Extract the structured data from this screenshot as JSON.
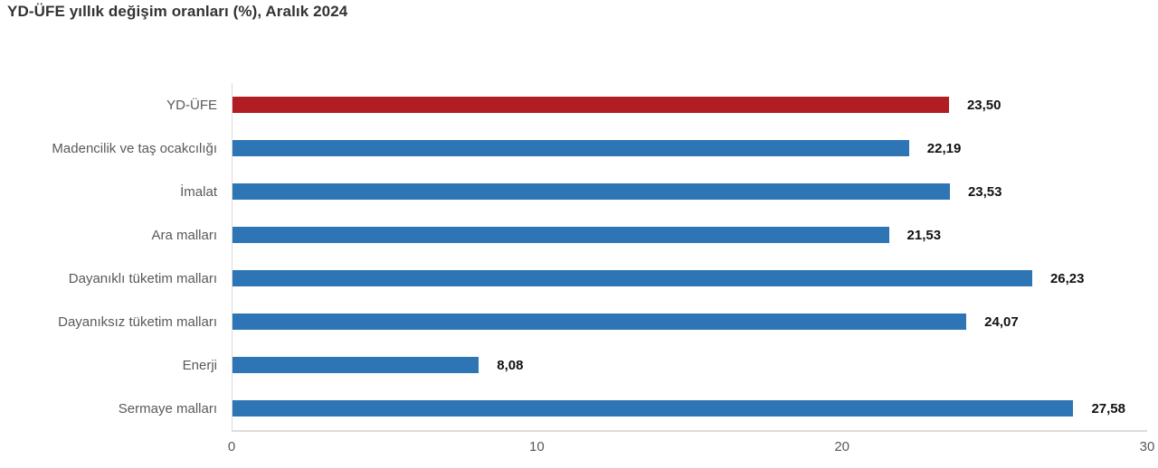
{
  "title": "YD-ÜFE yıllık değişim oranları (%), Aralık 2024",
  "chart_data": {
    "type": "bar",
    "orientation": "horizontal",
    "title": "YD-ÜFE yıllık değişim oranları (%), Aralık 2024",
    "categories": [
      "YD-ÜFE",
      "Madencilik ve taş ocakcılığı",
      "İmalat",
      "Ara malları",
      "Dayanıklı tüketim malları",
      "Dayanıksız tüketim malları",
      "Enerji",
      "Sermaye malları"
    ],
    "values": [
      23.5,
      22.19,
      23.53,
      21.53,
      26.23,
      24.07,
      8.08,
      27.58
    ],
    "value_labels": [
      "23,50",
      "22,19",
      "23,53",
      "21,53",
      "26,23",
      "24,07",
      "8,08",
      "27,58"
    ],
    "bar_colors": [
      "#b01e24",
      "#2e75b6",
      "#2e75b6",
      "#2e75b6",
      "#2e75b6",
      "#2e75b6",
      "#2e75b6",
      "#2e75b6"
    ],
    "highlight": {
      "category": "YD-ÜFE",
      "color": "#b01e24"
    },
    "default_bar_color": "#2e75b6",
    "xlabel": "",
    "ylabel": "",
    "xlim": [
      0,
      30
    ],
    "x_ticks": [
      0,
      10,
      20,
      30
    ],
    "grid": false,
    "legend": false
  },
  "colors": {
    "background": "#ffffff",
    "axis_line": "#d9d9d9",
    "title_text": "#333333",
    "category_text": "#595959",
    "value_text": "#111111",
    "tick_text": "#595959"
  }
}
